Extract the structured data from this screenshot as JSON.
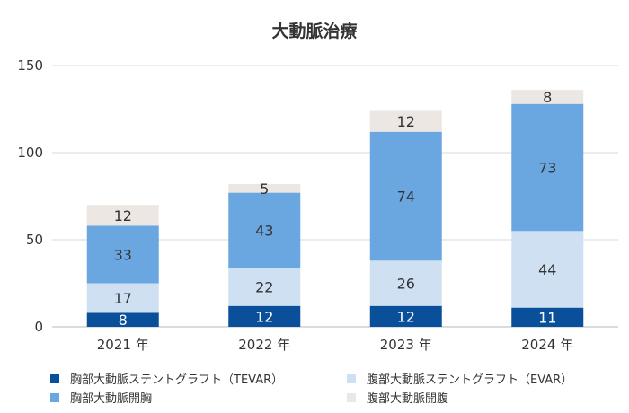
{
  "chart_data": {
    "type": "bar",
    "stacked": true,
    "title": "大動脈治療",
    "categories": [
      "2021 年",
      "2022 年",
      "2023 年",
      "2024 年"
    ],
    "ylim": [
      0,
      150
    ],
    "yticks": [
      0,
      50,
      100,
      150
    ],
    "grid": true,
    "legend_position": "bottom",
    "series": [
      {
        "name": "胸部大動脈ステントグラフト（TEVAR）",
        "color": "#0a4f9a",
        "label_color": "#ffffff",
        "values": [
          8,
          12,
          12,
          11
        ]
      },
      {
        "name": "腹部大動脈ステントグラフト（EVAR）",
        "color": "#cfe0f2",
        "label_color": "#333333",
        "values": [
          17,
          22,
          26,
          44
        ]
      },
      {
        "name": "胸部大動脈開胸",
        "color": "#6aa6e0",
        "label_color": "#333333",
        "values": [
          33,
          43,
          74,
          73
        ]
      },
      {
        "name": "腹部大動脈開腹",
        "color": "#ede7e3",
        "label_color": "#333333",
        "values": [
          12,
          5,
          12,
          8
        ]
      }
    ]
  }
}
